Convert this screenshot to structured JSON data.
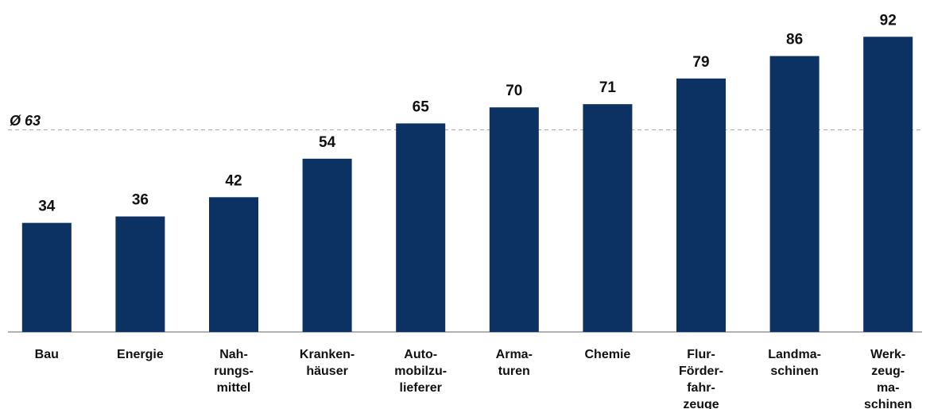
{
  "chart_data": {
    "type": "bar",
    "categories": [
      "Bau",
      "Energie",
      "Nah-\nrungs-\nmittel",
      "Kranken-\nhäuser",
      "Auto-\nmobilzu-\nlieferer",
      "Arma-\nturen",
      "Chemie",
      "Flur-\nFörder-\nfahr-\nzeuge",
      "Landma-\nschinen",
      "Werk-\nzeug-\nma-\nschinen"
    ],
    "values": [
      34,
      36,
      42,
      54,
      65,
      70,
      71,
      79,
      86,
      92
    ],
    "color": "#0b3262",
    "ylim": [
      0,
      100
    ],
    "average": {
      "value": 63,
      "label": "Ø 63"
    }
  }
}
